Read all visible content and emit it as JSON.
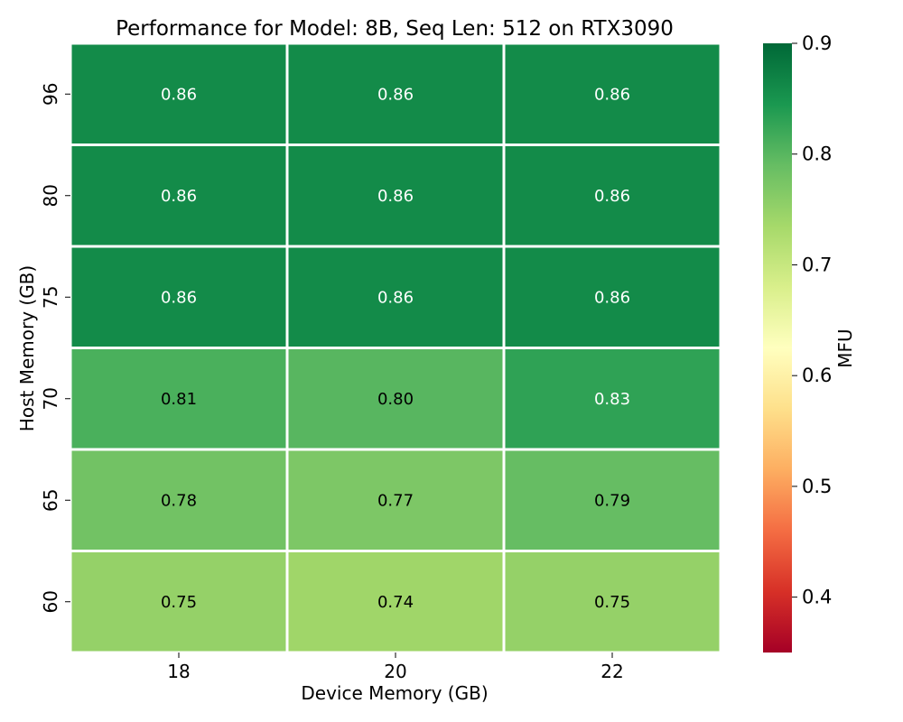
{
  "chart_data": {
    "type": "heatmap",
    "title": "Performance for Model: 8B, Seq Len: 512 on RTX3090",
    "xlabel": "Device Memory (GB)",
    "ylabel": "Host Memory (GB)",
    "x_categories": [
      "18",
      "20",
      "22"
    ],
    "y_categories": [
      "96",
      "80",
      "75",
      "70",
      "65",
      "60"
    ],
    "values": [
      [
        0.86,
        0.86,
        0.86
      ],
      [
        0.86,
        0.86,
        0.86
      ],
      [
        0.86,
        0.86,
        0.86
      ],
      [
        0.81,
        0.8,
        0.83
      ],
      [
        0.78,
        0.77,
        0.79
      ],
      [
        0.75,
        0.74,
        0.75
      ]
    ],
    "value_labels": [
      [
        "0.86",
        "0.86",
        "0.86"
      ],
      [
        "0.86",
        "0.86",
        "0.86"
      ],
      [
        "0.86",
        "0.86",
        "0.86"
      ],
      [
        "0.81",
        "0.80",
        "0.83"
      ],
      [
        "0.78",
        "0.77",
        "0.79"
      ],
      [
        "0.75",
        "0.74",
        "0.75"
      ]
    ],
    "colorbar": {
      "label": "MFU",
      "vmin": 0.35,
      "vmax": 0.9,
      "ticks": [
        "0.4",
        "0.5",
        "0.6",
        "0.7",
        "0.8",
        "0.9"
      ],
      "colormap": "RdYlGn"
    },
    "grid": false,
    "legend": "colorbar-right"
  }
}
